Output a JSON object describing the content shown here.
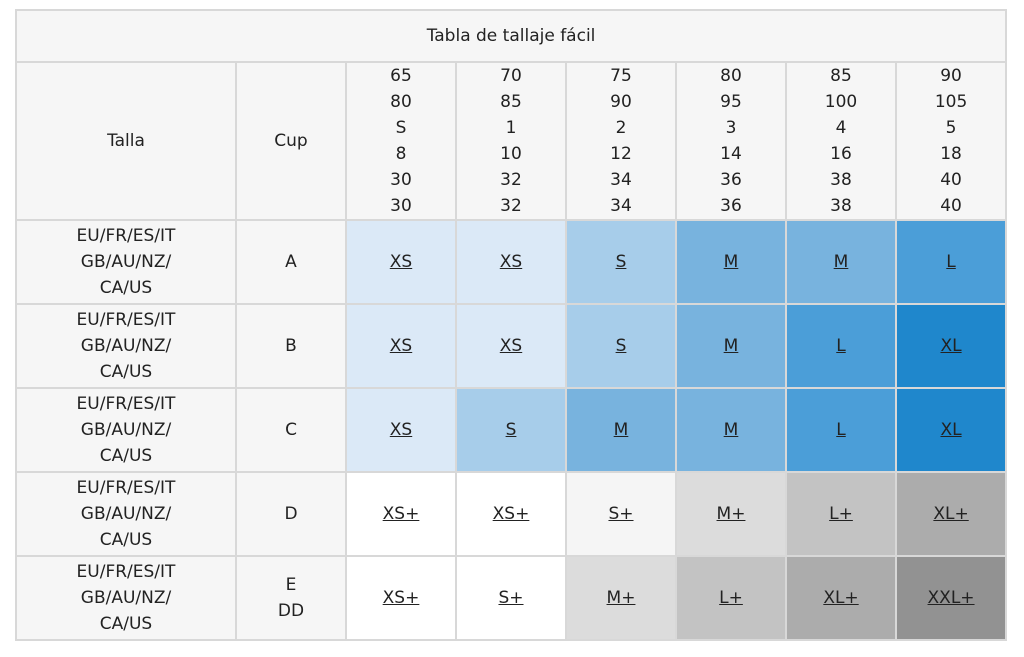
{
  "title": "Tabla de tallaje fácil",
  "header": {
    "talla": "Talla",
    "cup": "Cup",
    "columns": [
      [
        "65",
        "80",
        "S",
        "8",
        "30",
        "30"
      ],
      [
        "70",
        "85",
        "1",
        "10",
        "32",
        "32"
      ],
      [
        "75",
        "90",
        "2",
        "12",
        "34",
        "34"
      ],
      [
        "80",
        "95",
        "3",
        "14",
        "36",
        "36"
      ],
      [
        "85",
        "100",
        "4",
        "16",
        "38",
        "38"
      ],
      [
        "90",
        "105",
        "5",
        "18",
        "40",
        "40"
      ]
    ]
  },
  "rows": [
    {
      "region": [
        "EU/FR/ES/IT",
        "GB/AU/NZ/",
        "CA/US"
      ],
      "cup": [
        "A"
      ],
      "sizes": [
        "XS",
        "XS",
        "S",
        "M",
        "M",
        "L"
      ],
      "colors": [
        "#dbe9f7",
        "#dbe9f7",
        "#a7cdea",
        "#78b3de",
        "#78b3de",
        "#4b9ed8"
      ]
    },
    {
      "region": [
        "EU/FR/ES/IT",
        "GB/AU/NZ/",
        "CA/US"
      ],
      "cup": [
        "B"
      ],
      "sizes": [
        "XS",
        "XS",
        "S",
        "M",
        "L",
        "XL"
      ],
      "colors": [
        "#dbe9f7",
        "#dbe9f7",
        "#a7cdea",
        "#78b3de",
        "#4b9ed8",
        "#1f87cc"
      ]
    },
    {
      "region": [
        "EU/FR/ES/IT",
        "GB/AU/NZ/",
        "CA/US"
      ],
      "cup": [
        "C"
      ],
      "sizes": [
        "XS",
        "S",
        "M",
        "M",
        "L",
        "XL"
      ],
      "colors": [
        "#dbe9f7",
        "#a7cdea",
        "#78b3de",
        "#78b3de",
        "#4b9ed8",
        "#1f87cc"
      ]
    },
    {
      "region": [
        "EU/FR/ES/IT",
        "GB/AU/NZ/",
        "CA/US"
      ],
      "cup": [
        "D"
      ],
      "sizes": [
        "XS+",
        "XS+",
        "S+",
        "M+",
        "L+",
        "XL+"
      ],
      "colors": [
        "#ffffff",
        "#ffffff",
        "#f5f5f5",
        "#dcdcdc",
        "#c3c3c3",
        "#acacac"
      ]
    },
    {
      "region": [
        "EU/FR/ES/IT",
        "GB/AU/NZ/",
        "CA/US"
      ],
      "cup": [
        "E",
        "DD"
      ],
      "sizes": [
        "XS+",
        "S+",
        "M+",
        "L+",
        "XL+",
        "XXL+"
      ],
      "colors": [
        "#ffffff",
        "#ffffff",
        "#dcdcdc",
        "#c3c3c3",
        "#acacac",
        "#929292"
      ]
    }
  ]
}
